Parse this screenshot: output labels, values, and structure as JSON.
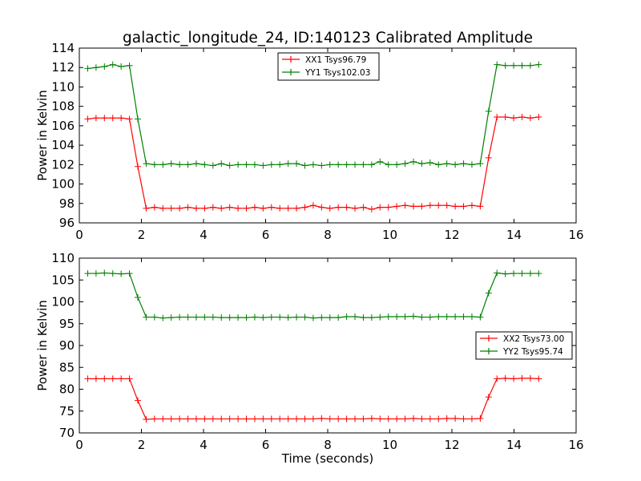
{
  "chart_data": [
    {
      "type": "line",
      "title": "galactic_longitude_24, ID:140123 Calibrated Amplitude",
      "xlabel": "",
      "ylabel": "Power in Kelvin",
      "xlim": [
        0,
        16
      ],
      "ylim": [
        96,
        114
      ],
      "xticks": [
        0,
        2,
        4,
        6,
        8,
        10,
        12,
        14,
        16
      ],
      "yticks": [
        96,
        98,
        100,
        102,
        104,
        106,
        108,
        110,
        112,
        114
      ],
      "legend_position": "upper-center",
      "x_start": 0.27,
      "x_step": 0.269,
      "series": [
        {
          "name": "XX1 Tsys96.79",
          "color": "#ff0000",
          "marker": "+",
          "values": [
            106.7,
            106.8,
            106.8,
            106.8,
            106.8,
            106.7,
            101.8,
            97.5,
            97.6,
            97.5,
            97.5,
            97.5,
            97.6,
            97.5,
            97.5,
            97.6,
            97.5,
            97.6,
            97.5,
            97.5,
            97.6,
            97.5,
            97.6,
            97.5,
            97.5,
            97.5,
            97.6,
            97.8,
            97.6,
            97.5,
            97.6,
            97.6,
            97.5,
            97.6,
            97.4,
            97.6,
            97.6,
            97.7,
            97.8,
            97.7,
            97.7,
            97.8,
            97.8,
            97.8,
            97.7,
            97.7,
            97.8,
            97.7,
            102.7,
            106.9,
            106.9,
            106.8,
            106.9,
            106.8,
            106.9
          ]
        },
        {
          "name": "YY1 Tsys102.03",
          "color": "#008000",
          "marker": "+",
          "values": [
            111.9,
            112.0,
            112.1,
            112.3,
            112.1,
            112.2,
            106.7,
            102.1,
            102.0,
            102.0,
            102.1,
            102.0,
            102.0,
            102.1,
            102.0,
            101.9,
            102.1,
            101.9,
            102.0,
            102.0,
            102.0,
            101.9,
            102.0,
            102.0,
            102.1,
            102.1,
            101.9,
            102.0,
            101.9,
            102.0,
            102.0,
            102.0,
            102.0,
            102.0,
            102.0,
            102.3,
            102.0,
            102.0,
            102.1,
            102.3,
            102.1,
            102.2,
            102.0,
            102.1,
            102.0,
            102.1,
            102.0,
            102.1,
            107.5,
            112.3,
            112.2,
            112.2,
            112.2,
            112.2,
            112.3
          ]
        }
      ]
    },
    {
      "type": "line",
      "title": "",
      "xlabel": "Time (seconds)",
      "ylabel": "Power in Kelvin",
      "xlim": [
        0,
        16
      ],
      "ylim": [
        70,
        110
      ],
      "xticks": [
        0,
        2,
        4,
        6,
        8,
        10,
        12,
        14,
        16
      ],
      "yticks": [
        70,
        75,
        80,
        85,
        90,
        95,
        100,
        105,
        110
      ],
      "legend_position": "center-right",
      "x_start": 0.27,
      "x_step": 0.269,
      "series": [
        {
          "name": "XX2 Tsys73.00",
          "color": "#ff0000",
          "marker": "+",
          "values": [
            82.4,
            82.4,
            82.4,
            82.4,
            82.4,
            82.4,
            77.4,
            73.1,
            73.2,
            73.2,
            73.2,
            73.2,
            73.2,
            73.2,
            73.2,
            73.2,
            73.2,
            73.2,
            73.2,
            73.2,
            73.2,
            73.2,
            73.2,
            73.2,
            73.2,
            73.2,
            73.2,
            73.2,
            73.3,
            73.2,
            73.2,
            73.2,
            73.2,
            73.2,
            73.3,
            73.2,
            73.2,
            73.2,
            73.2,
            73.3,
            73.2,
            73.2,
            73.2,
            73.3,
            73.3,
            73.2,
            73.2,
            73.3,
            78.2,
            82.4,
            82.5,
            82.4,
            82.5,
            82.5,
            82.4
          ]
        },
        {
          "name": "YY2 Tsys95.74",
          "color": "#008000",
          "marker": "+",
          "values": [
            106.5,
            106.5,
            106.6,
            106.5,
            106.4,
            106.5,
            101.0,
            96.5,
            96.5,
            96.3,
            96.4,
            96.5,
            96.5,
            96.5,
            96.5,
            96.5,
            96.4,
            96.4,
            96.4,
            96.4,
            96.5,
            96.4,
            96.5,
            96.5,
            96.4,
            96.5,
            96.5,
            96.3,
            96.4,
            96.4,
            96.4,
            96.6,
            96.6,
            96.4,
            96.4,
            96.5,
            96.6,
            96.6,
            96.6,
            96.7,
            96.5,
            96.5,
            96.6,
            96.6,
            96.6,
            96.6,
            96.6,
            96.5,
            102.0,
            106.6,
            106.4,
            106.5,
            106.5,
            106.5,
            106.5
          ]
        }
      ]
    }
  ]
}
